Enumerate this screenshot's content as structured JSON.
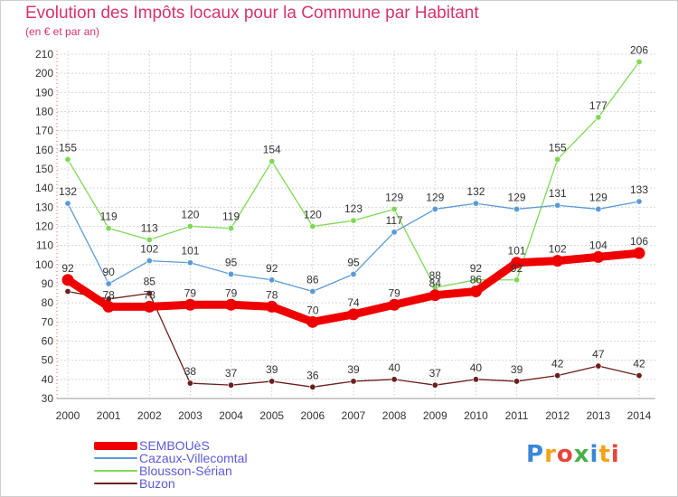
{
  "title": "Evolution des Impôts locaux pour la Commune par Habitant",
  "subtitle": "(en € et par an)",
  "logo_text": "Proxiti",
  "chart_data": {
    "type": "line",
    "title": "Evolution des Impôts locaux pour la Commune par Habitant",
    "subtitle": "(en € et par an)",
    "x": [
      "2000",
      "2001",
      "2002",
      "2003",
      "2004",
      "2005",
      "2006",
      "2007",
      "2008",
      "2009",
      "2010",
      "2011",
      "2012",
      "2013",
      "2014"
    ],
    "ylim": [
      30,
      210
    ],
    "yticks": [
      30,
      40,
      50,
      60,
      70,
      80,
      90,
      100,
      110,
      120,
      130,
      140,
      150,
      160,
      170,
      180,
      190,
      200,
      210
    ],
    "grid": true,
    "legend_position": "bottom-left",
    "series": [
      {
        "name": "SEMBOUèS",
        "color": "#ee0000",
        "values": [
          92,
          78,
          78,
          79,
          79,
          78,
          70,
          74,
          79,
          84,
          86,
          101,
          102,
          104,
          106
        ]
      },
      {
        "name": "Cazaux-Villecomtal",
        "color": "#5b9bd5",
        "values": [
          132,
          90,
          102,
          101,
          95,
          92,
          86,
          95,
          117,
          129,
          132,
          129,
          131,
          129,
          133
        ]
      },
      {
        "name": "Blousson-Sérian",
        "color": "#7ed957",
        "values": [
          155,
          119,
          113,
          120,
          119,
          154,
          120,
          123,
          129,
          88,
          92,
          92,
          155,
          177,
          206
        ]
      },
      {
        "name": "Buzon",
        "color": "#6b1f1f",
        "values": [
          86,
          82,
          85,
          38,
          37,
          39,
          36,
          39,
          40,
          37,
          40,
          39,
          42,
          47,
          42
        ]
      }
    ],
    "data_labels": [
      {
        "series": "SEMBOUèS",
        "values": [
          92,
          78,
          78,
          79,
          79,
          78,
          70,
          74,
          79,
          84,
          86,
          101,
          102,
          104,
          106
        ]
      },
      {
        "series": "Cazaux-Villecomtal",
        "values": [
          132,
          90,
          102,
          101,
          95,
          92,
          86,
          95,
          117,
          129,
          132,
          129,
          131,
          129,
          133
        ]
      },
      {
        "series": "Blousson-Sérian",
        "values": [
          155,
          119,
          113,
          120,
          119,
          154,
          120,
          123,
          129,
          88,
          92,
          92,
          155,
          177,
          206
        ]
      },
      {
        "series": "Buzon",
        "values": [
          null,
          null,
          85,
          38,
          37,
          39,
          36,
          39,
          40,
          37,
          40,
          39,
          42,
          47,
          42
        ]
      }
    ]
  }
}
